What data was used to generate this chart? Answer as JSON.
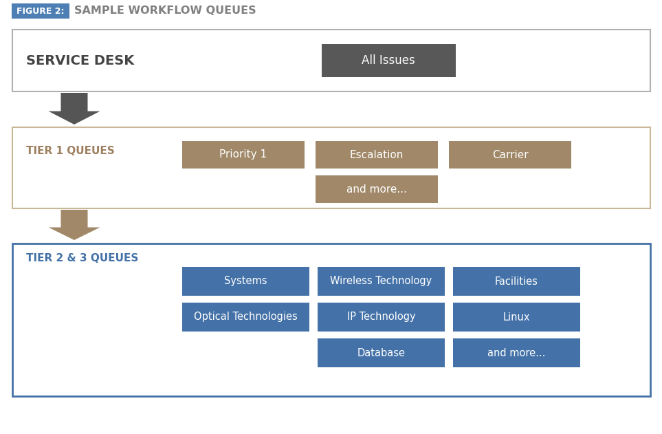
{
  "title_badge_text": "FIGURE 2:",
  "title_badge_color": "#4d7fb5",
  "title_text": "SAMPLE WORKFLOW QUEUES",
  "title_color": "#808080",
  "bg_color": "#ffffff",
  "sd_label": "SERVICE DESK",
  "sd_label_color": "#444444",
  "sd_button_text": "All Issues",
  "sd_button_color": "#585858",
  "sd_button_text_color": "#ffffff",
  "sd_border_color": "#b0b0b0",
  "t1_label": "TIER 1 QUEUES",
  "t1_label_color": "#9e8060",
  "t1_border_color": "#c8b898",
  "t1_button_color": "#a08868",
  "t1_button_text_color": "#ffffff",
  "t1_buttons_row1": [
    "Priority 1",
    "Escalation",
    "Carrier"
  ],
  "t1_buttons_row2": [
    "and more..."
  ],
  "t2_label": "TIER 2 & 3 QUEUES",
  "t2_label_color": "#4472a8",
  "t2_border_color": "#4472a8",
  "t2_button_color": "#4472a8",
  "t2_button_text_color": "#ffffff",
  "t2_buttons_row1": [
    "Systems",
    "Wireless Technology",
    "Facilities"
  ],
  "t2_buttons_row2": [
    "Optical Technologies",
    "IP Technology",
    "Linux"
  ],
  "t2_buttons_row3": [
    "Database",
    "and more..."
  ],
  "arrow1_color": "#555555",
  "arrow2_color": "#a08868"
}
